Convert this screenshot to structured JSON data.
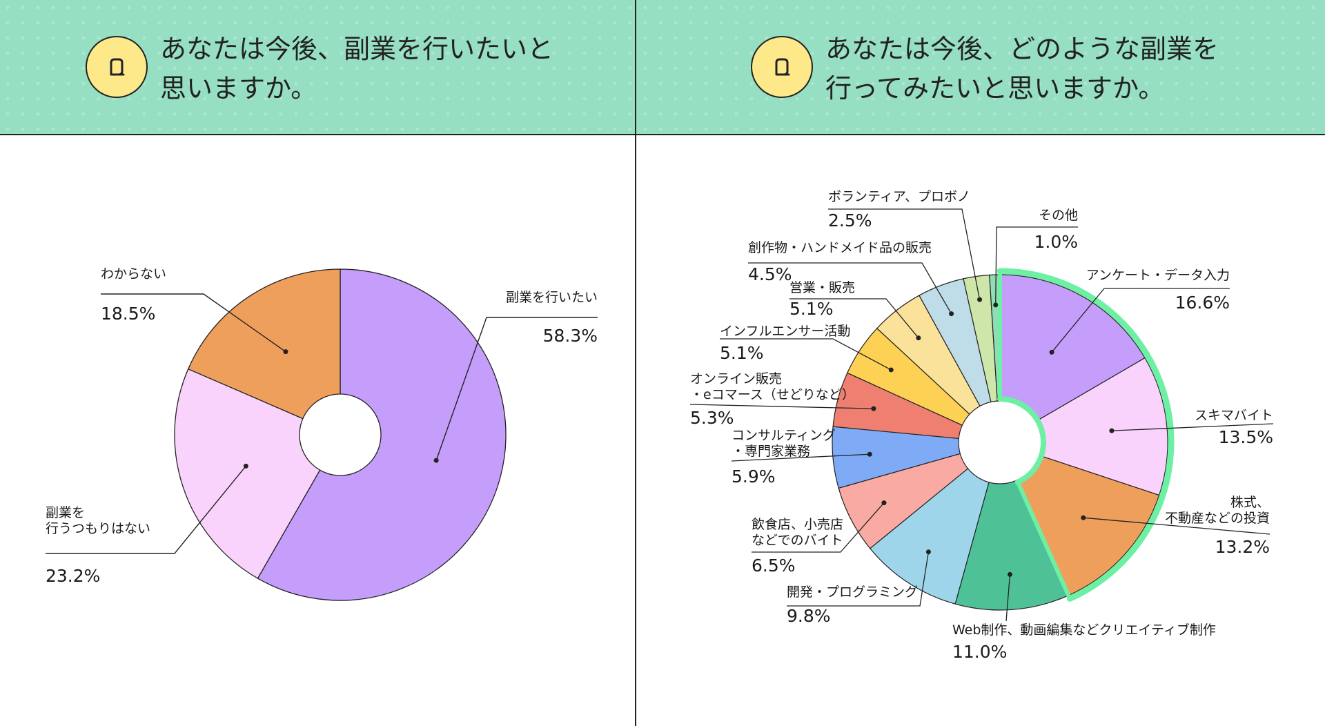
{
  "questions": [
    {
      "lines": [
        "あなたは今後、副業を行いたいと",
        "思いますか。"
      ],
      "icon": "q-icon"
    },
    {
      "lines": [
        "あなたは今後、どのような副業を",
        "行ってみたいと思いますか。"
      ],
      "icon": "q-icon"
    }
  ],
  "colors": {
    "header_bg": "#96dfc2",
    "icon_bg": "#fde98a",
    "highlight": "#6ef0a4"
  },
  "chart_data": [
    {
      "type": "pie",
      "variant": "donut",
      "slices": [
        {
          "label": "副業を行いたい",
          "value": 58.3,
          "value_text": "58.3%",
          "color": "#c59dfa"
        },
        {
          "label": "副業を\n行うつもりはない",
          "value": 23.2,
          "value_text": "23.2%",
          "color": "#f9d3fb"
        },
        {
          "label": "わからない",
          "value": 18.5,
          "value_text": "18.5%",
          "color": "#ef9f5c"
        }
      ]
    },
    {
      "type": "pie",
      "variant": "donut",
      "slices": [
        {
          "label": "アンケート・データ入力",
          "value": 16.6,
          "value_text": "16.6%",
          "color": "#c59dfa"
        },
        {
          "label": "スキマバイト",
          "value": 13.5,
          "value_text": "13.5%",
          "color": "#f9d3fb"
        },
        {
          "label": "株式、\n不動産などの投資",
          "value": 13.2,
          "value_text": "13.2%",
          "color": "#ef9f5c"
        },
        {
          "label": "Web制作、動画編集などクリエイティブ制作",
          "value": 11.0,
          "value_text": "11.0%",
          "color": "#4fc196"
        },
        {
          "label": "開発・プログラミング",
          "value": 9.8,
          "value_text": "9.8%",
          "color": "#9fd5ea"
        },
        {
          "label": "飲食店、小売店\nなどでのバイト",
          "value": 6.5,
          "value_text": "6.5%",
          "color": "#f9aaa2"
        },
        {
          "label": "コンサルティング\n・専門家業務",
          "value": 5.9,
          "value_text": "5.9%",
          "color": "#7eaaf6"
        },
        {
          "label": "オンライン販売\n・eコマース（せどりなど）",
          "value": 5.3,
          "value_text": "5.3%",
          "color": "#ef7f71"
        },
        {
          "label": "インフルエンサー活動",
          "value": 5.1,
          "value_text": "5.1%",
          "color": "#fdd254"
        },
        {
          "label": "営業・販売",
          "value": 5.1,
          "value_text": "5.1%",
          "color": "#fbe29a"
        },
        {
          "label": "創作物・ハンドメイド品の販売",
          "value": 4.5,
          "value_text": "4.5%",
          "color": "#bfdde8"
        },
        {
          "label": "ボランティア、プロボノ",
          "value": 2.5,
          "value_text": "2.5%",
          "color": "#cfe6aa"
        },
        {
          "label": "その他",
          "value": 1.0,
          "value_text": "1.0%",
          "color": "#8fdcb6"
        }
      ],
      "highlighted_slices": [
        "アンケート・データ入力",
        "スキマバイト",
        "株式、\n不動産などの投資"
      ]
    }
  ]
}
